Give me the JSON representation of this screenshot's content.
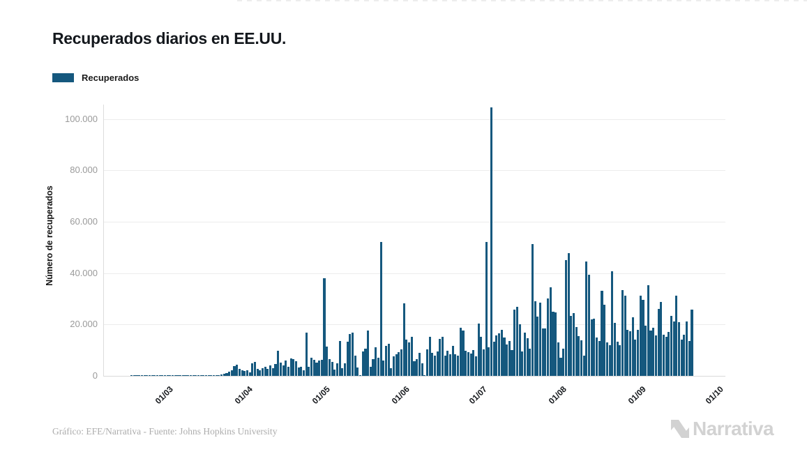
{
  "chart_data": {
    "type": "bar",
    "title": "Recuperados diarios en EE.UU.",
    "series_name": "Recuperados",
    "ylabel": "Número de recuperados",
    "xlabel": "",
    "bar_color": "#15587e",
    "grid": true,
    "legend_position": "top-left",
    "ylim": [
      0,
      110000
    ],
    "y_tick_labels": [
      "0",
      "20.000",
      "40.000",
      "60.000",
      "80.000",
      "100.000"
    ],
    "y_tick_values": [
      0,
      20000,
      40000,
      60000,
      80000,
      100000
    ],
    "x_tick_labels": [
      "01/03",
      "01/04",
      "01/05",
      "01/06",
      "01/07",
      "01/08",
      "01/09",
      "01/10"
    ],
    "x_tick_day_offsets": [
      0,
      31,
      61,
      92,
      122,
      153,
      184,
      214
    ],
    "x_unit": "day",
    "first_day_offset_from_mar1": -13,
    "values": [
      10,
      15,
      20,
      25,
      30,
      35,
      40,
      45,
      50,
      55,
      60,
      70,
      80,
      90,
      100,
      110,
      120,
      130,
      140,
      150,
      160,
      170,
      180,
      190,
      200,
      210,
      220,
      230,
      240,
      250,
      260,
      270,
      280,
      290,
      350,
      500,
      700,
      1100,
      1600,
      2200,
      3800,
      4400,
      2700,
      2100,
      2000,
      2300,
      1300,
      5000,
      5400,
      2700,
      2300,
      3000,
      3600,
      2700,
      4100,
      3000,
      4500,
      9900,
      5200,
      4100,
      5900,
      3600,
      6800,
      6500,
      5700,
      3200,
      3600,
      2300,
      16900,
      3600,
      7100,
      6300,
      5200,
      5900,
      6300,
      38000,
      11400,
      6500,
      5300,
      2500,
      4800,
      13700,
      3000,
      4800,
      13200,
      16200,
      16700,
      8000,
      3300,
      300,
      9500,
      10700,
      17600,
      3600,
      6600,
      11200,
      7100,
      52000,
      5900,
      11600,
      12600,
      3000,
      7700,
      8500,
      9200,
      10300,
      28100,
      14000,
      13100,
      15300,
      5700,
      6500,
      9000,
      5000,
      300,
      10200,
      15300,
      9000,
      7900,
      9500,
      14400,
      15300,
      7900,
      9800,
      8400,
      11600,
      8400,
      7900,
      18600,
      17700,
      9800,
      9300,
      8700,
      10100,
      7600,
      20400,
      15300,
      10400,
      52000,
      11000,
      104500,
      13400,
      15700,
      16600,
      17900,
      15000,
      12300,
      13700,
      10000,
      25900,
      27000,
      20000,
      9600,
      16800,
      14600,
      10500,
      51300,
      29000,
      23000,
      28400,
      18500,
      18500,
      30000,
      34500,
      25000,
      24800,
      13000,
      7000,
      10500,
      45000,
      47800,
      23400,
      24500,
      19000,
      15500,
      13800,
      8000,
      44500,
      39300,
      22000,
      22300,
      15000,
      13500,
      33000,
      27600,
      13000,
      12000,
      40700,
      20500,
      13200,
      12000,
      33400,
      31200,
      17800,
      17300,
      22800,
      14100,
      18000,
      31200,
      29600,
      19600,
      35200,
      17700,
      18600,
      15800,
      26000,
      28700,
      16000,
      15200,
      17000,
      23300,
      21300,
      31200,
      20900,
      14000,
      16000,
      21300,
      13600,
      25700
    ]
  },
  "footer": {
    "credit": "Gráfico: EFE/Narrativa - Fuente: Johns Hopkins University",
    "brand": "Narrativa"
  }
}
